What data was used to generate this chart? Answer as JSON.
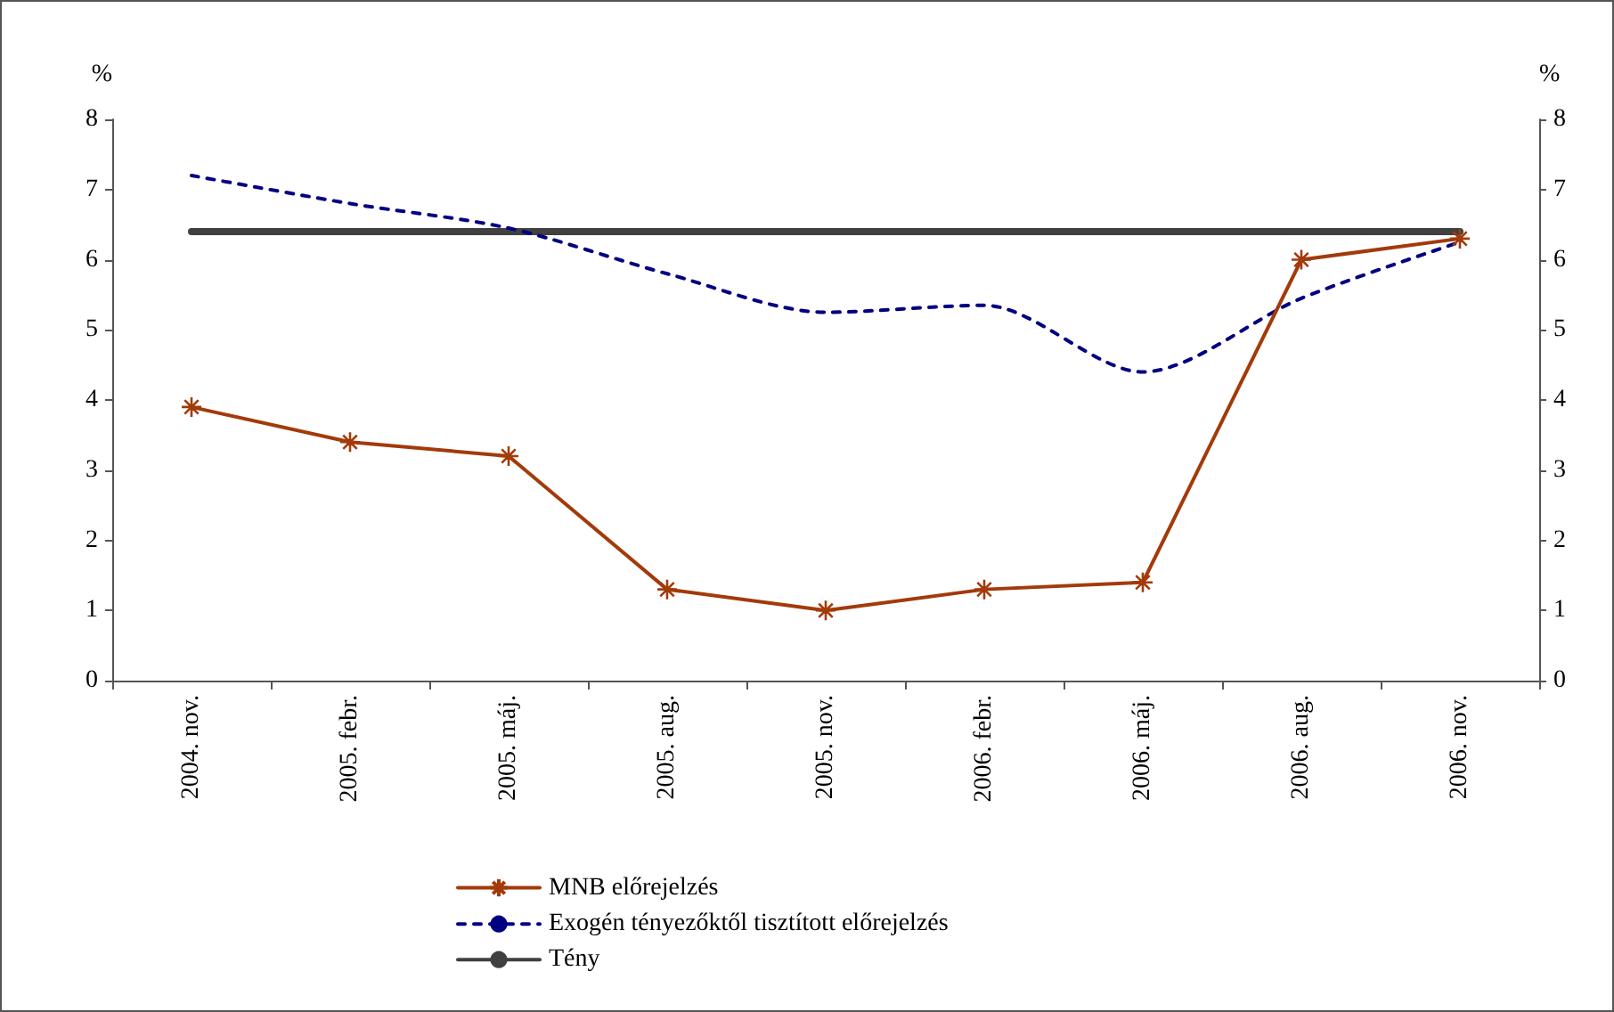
{
  "chart_data": {
    "type": "line",
    "ylabel": "%",
    "y2label": "%",
    "categories": [
      "2004. nov.",
      "2005. febr.",
      "2005. máj.",
      "2005. aug.",
      "2005. nov.",
      "2006. febr.",
      "2006. máj.",
      "2006. aug.",
      "2006. nov."
    ],
    "series": [
      {
        "name": "MNB előrejelzés",
        "color": "#a33a0a",
        "marker": "cross",
        "line_style": "solid",
        "values": [
          3.9,
          3.4,
          3.2,
          1.3,
          1.0,
          1.3,
          1.4,
          6.0,
          6.3
        ]
      },
      {
        "name": "Exogén tényezőktől tisztított előrejelzés",
        "color": "#000080",
        "marker": "none",
        "line_style": "dashed",
        "values": [
          7.2,
          6.8,
          6.45,
          5.8,
          5.25,
          5.35,
          4.4,
          5.45,
          6.25
        ]
      },
      {
        "name": "Tény",
        "color": "#404040",
        "marker": "none",
        "line_style": "solid",
        "values": [
          6.4,
          6.4,
          6.4,
          6.4,
          6.4,
          6.4,
          6.4,
          6.4,
          6.4
        ]
      }
    ],
    "ylim": [
      0,
      8
    ],
    "yticks": [
      0,
      1,
      2,
      3,
      4,
      5,
      6,
      7,
      8
    ],
    "y2lim": [
      0,
      8
    ],
    "y2ticks": [
      0,
      1,
      2,
      3,
      4,
      5,
      6,
      7,
      8
    ],
    "grid": false,
    "legend": "bottom"
  }
}
